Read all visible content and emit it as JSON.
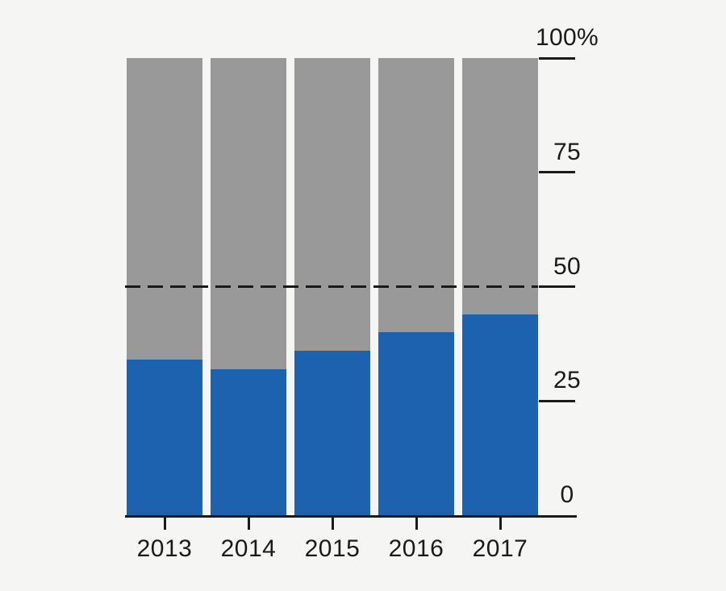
{
  "canvas": {
    "background": "#f5f5f4"
  },
  "chart_data": {
    "type": "bar",
    "stacked": true,
    "orientation": "vertical",
    "units": "percent",
    "title": "",
    "xlabel": "",
    "ylabel": "",
    "categories": [
      "2013",
      "2014",
      "2015",
      "2016",
      "2017"
    ],
    "series": [
      {
        "name": "blue-segment",
        "color": "#1c62ae",
        "values": [
          34,
          32,
          36,
          40,
          44
        ]
      },
      {
        "name": "gray-segment",
        "color": "#999999",
        "values": [
          66,
          68,
          64,
          60,
          56
        ]
      }
    ],
    "ylim": [
      0,
      100
    ],
    "y_ticks": [
      {
        "value": 100,
        "label": "100%",
        "has_tick_mark": true
      },
      {
        "value": 75,
        "label": "75",
        "has_tick_mark": true
      },
      {
        "value": 50,
        "label": "50",
        "has_tick_mark": true
      },
      {
        "value": 25,
        "label": "25",
        "has_tick_mark": true
      },
      {
        "value": 0,
        "label": "0",
        "has_tick_mark": false
      }
    ],
    "reference_line": {
      "value": 50,
      "style": "dashed",
      "color": "#1a1a1a"
    },
    "axis_color": "#1a1a1a",
    "text_color": "#1a1a1a",
    "grid": "off",
    "legend": "none",
    "y_axis_side": "right"
  }
}
